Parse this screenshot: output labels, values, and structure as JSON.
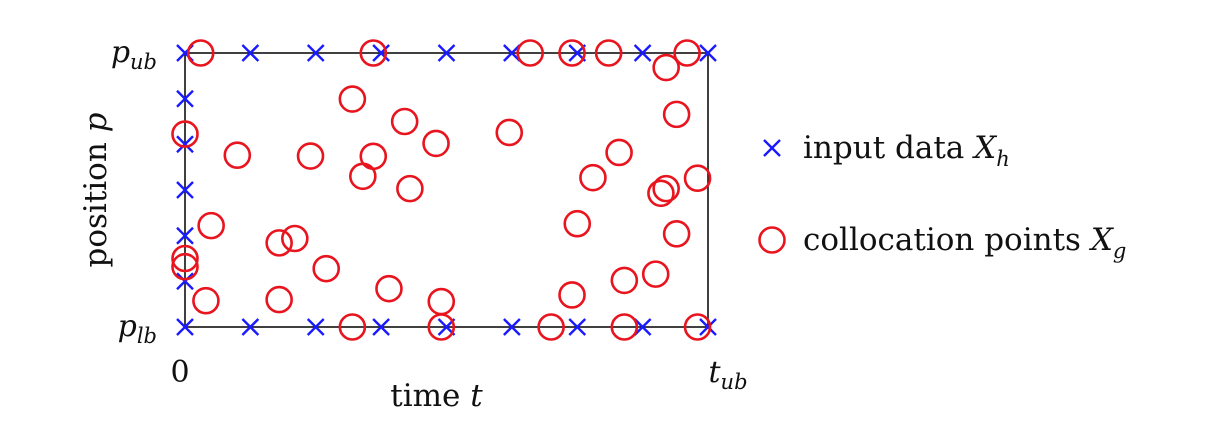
{
  "chart_data": {
    "type": "scatter",
    "title": "",
    "xlabel": "time",
    "xlabel_symbol": "t",
    "ylabel": "position",
    "ylabel_symbol": "p",
    "x_ticks": [
      {
        "value": 0,
        "label": "0"
      },
      {
        "value": 1,
        "label": "t",
        "sub": "ub"
      }
    ],
    "y_ticks": [
      {
        "value": 0,
        "label": "p",
        "sub": "lb"
      },
      {
        "value": 1,
        "label": "p",
        "sub": "ub"
      }
    ],
    "xlim": [
      0,
      1
    ],
    "ylim": [
      0,
      1
    ],
    "grid": false,
    "legend_position": "right",
    "series": [
      {
        "name": "input data",
        "symbol": "X",
        "symbol_sub": "h",
        "marker": "cross",
        "color": "#1a1aff",
        "points": [
          [
            0.0,
            1.0
          ],
          [
            0.125,
            1.0
          ],
          [
            0.25,
            1.0
          ],
          [
            0.375,
            1.0
          ],
          [
            0.5,
            1.0
          ],
          [
            0.625,
            1.0
          ],
          [
            0.75,
            1.0
          ],
          [
            0.875,
            1.0
          ],
          [
            1.0,
            1.0
          ],
          [
            0.0,
            0.0
          ],
          [
            0.125,
            0.0
          ],
          [
            0.25,
            0.0
          ],
          [
            0.375,
            0.0
          ],
          [
            0.5,
            0.0
          ],
          [
            0.625,
            0.0
          ],
          [
            0.75,
            0.0
          ],
          [
            0.875,
            0.0
          ],
          [
            1.0,
            0.0
          ],
          [
            0.0,
            0.833
          ],
          [
            0.0,
            0.667
          ],
          [
            0.0,
            0.5
          ],
          [
            0.0,
            0.333
          ],
          [
            0.0,
            0.167
          ]
        ]
      },
      {
        "name": "collocation points",
        "symbol": "X",
        "symbol_sub": "g",
        "marker": "circle",
        "color": "#e8141e",
        "points": [
          [
            0.03,
            1.0
          ],
          [
            0.36,
            1.0
          ],
          [
            0.66,
            1.0
          ],
          [
            0.74,
            1.0
          ],
          [
            0.81,
            1.0
          ],
          [
            0.96,
            1.0
          ],
          [
            0.92,
            0.947
          ],
          [
            0.32,
            0.832
          ],
          [
            0.94,
            0.776
          ],
          [
            0.42,
            0.75
          ],
          [
            0.0,
            0.704
          ],
          [
            0.62,
            0.71
          ],
          [
            0.48,
            0.67
          ],
          [
            0.1,
            0.627
          ],
          [
            0.24,
            0.624
          ],
          [
            0.36,
            0.623
          ],
          [
            0.83,
            0.637
          ],
          [
            0.34,
            0.55
          ],
          [
            0.78,
            0.545
          ],
          [
            0.43,
            0.505
          ],
          [
            0.92,
            0.505
          ],
          [
            0.91,
            0.488
          ],
          [
            0.98,
            0.543
          ],
          [
            0.05,
            0.37
          ],
          [
            0.75,
            0.377
          ],
          [
            0.21,
            0.323
          ],
          [
            0.18,
            0.307
          ],
          [
            0.94,
            0.34
          ],
          [
            0.0,
            0.25
          ],
          [
            0.0,
            0.22
          ],
          [
            0.27,
            0.213
          ],
          [
            0.9,
            0.193
          ],
          [
            0.84,
            0.17
          ],
          [
            0.39,
            0.14
          ],
          [
            0.74,
            0.117
          ],
          [
            0.04,
            0.096
          ],
          [
            0.18,
            0.1
          ],
          [
            0.49,
            0.093
          ],
          [
            0.32,
            0.0
          ],
          [
            0.49,
            0.0
          ],
          [
            0.7,
            0.0
          ],
          [
            0.84,
            0.0
          ],
          [
            0.98,
            0.0
          ]
        ]
      }
    ]
  }
}
